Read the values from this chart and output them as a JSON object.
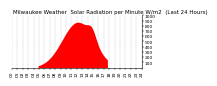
{
  "title": "Milwaukee Weather  Solar Radiation per Minute W/m2  (Last 24 Hours)",
  "background_color": "#ffffff",
  "plot_bg_color": "#ffffff",
  "grid_color": "#aaaaaa",
  "fill_color": "#ff0000",
  "line_color": "#cc0000",
  "num_points": 1440,
  "peak_hour": 12.2,
  "peak_value": 870,
  "sigma1": 175,
  "peak2_hour": 14.8,
  "peak2_value": 180,
  "sigma2": 45,
  "sunrise_minute": 290,
  "sunset_minute": 1060,
  "ylim": [
    0,
    1000
  ],
  "xlim": [
    0,
    1440
  ],
  "num_x_ticks": 25,
  "y_tick_values": [
    100,
    200,
    300,
    400,
    500,
    600,
    700,
    800,
    900,
    1000
  ],
  "title_fontsize": 4.0,
  "tick_fontsize": 3.2
}
